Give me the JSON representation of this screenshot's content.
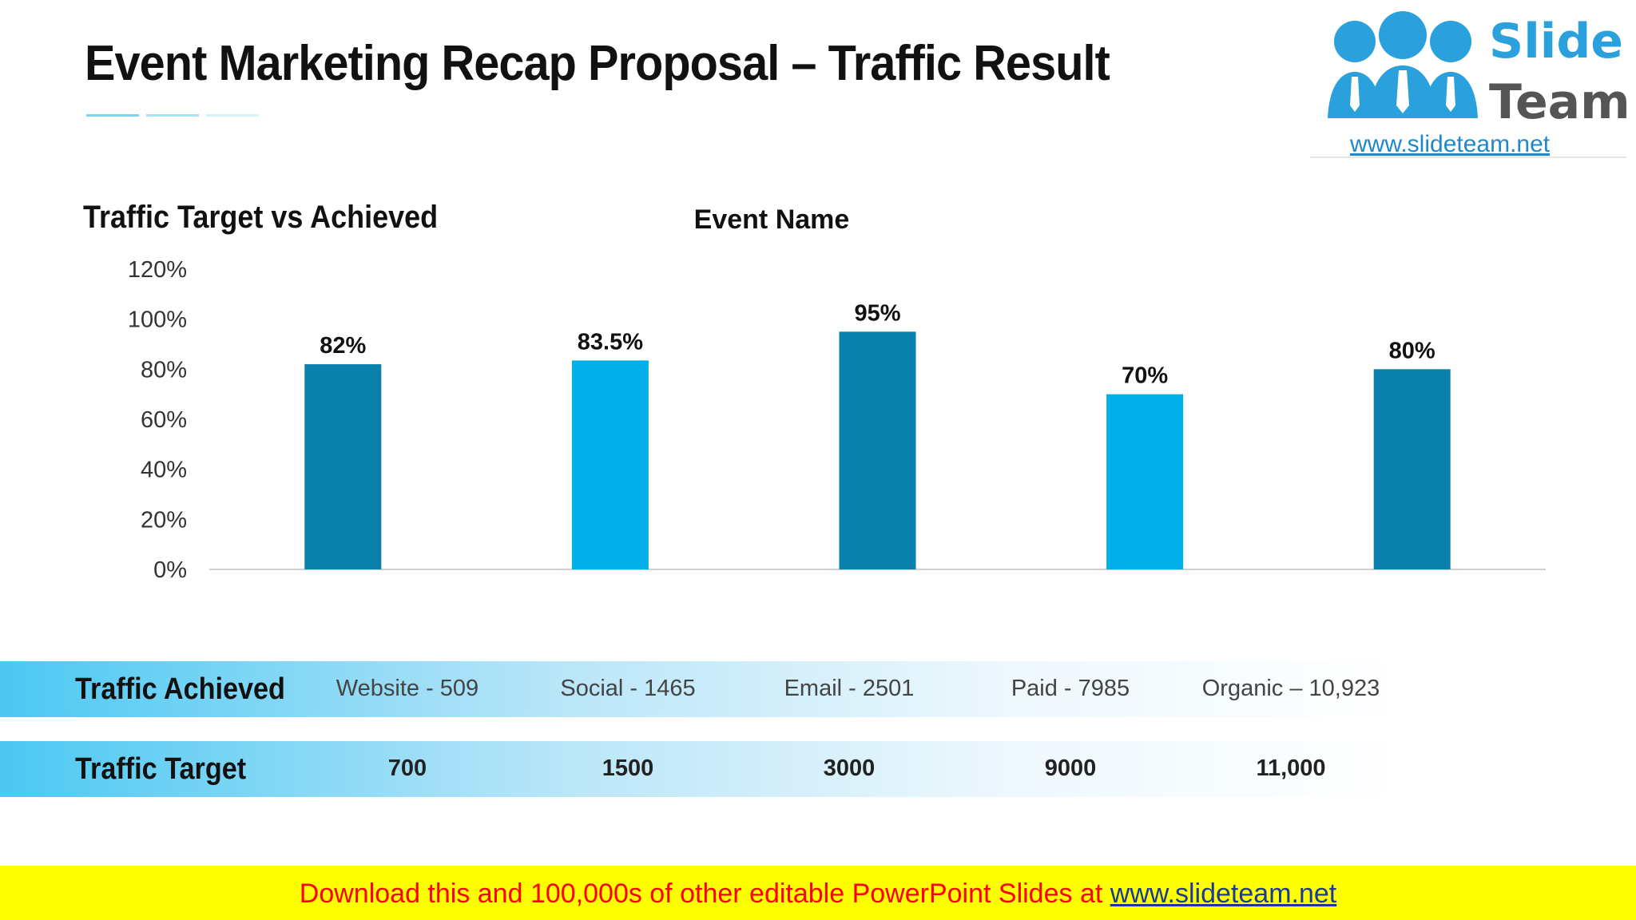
{
  "slide": {
    "title": "Event Marketing Recap Proposal – Traffic Result",
    "accent_colors": [
      "#7fd3ef",
      "#a9e2f5",
      "#d6f1fa"
    ]
  },
  "logo": {
    "word1": "Slide",
    "word2": "Team",
    "url": "www.slideteam.net",
    "colors": {
      "slide": "#2aa0dc",
      "team": "#555555",
      "people": "#2aa0dc"
    }
  },
  "chart_heading": "Traffic Target vs Achieved",
  "chart_data": {
    "type": "bar",
    "title": "Event Name",
    "categories": [
      "Website",
      "Social",
      "Email",
      "Paid",
      "Organic"
    ],
    "values": [
      82,
      83.5,
      95,
      70,
      80
    ],
    "data_labels": [
      "82%",
      "83.5%",
      "95%",
      "70%",
      "80%"
    ],
    "ylim": [
      0,
      120
    ],
    "yticks": [
      0,
      20,
      40,
      60,
      80,
      100,
      120
    ],
    "ytick_labels": [
      "0%",
      "20%",
      "40%",
      "60%",
      "80%",
      "100%",
      "120%"
    ],
    "xlabel": "",
    "ylabel": "",
    "grid": false,
    "legend": "none",
    "bar_colors": [
      "#0a80ad",
      "#00aee8",
      "#0a80ad",
      "#00aee8",
      "#0a80ad"
    ]
  },
  "table": {
    "achieved": {
      "label": "Traffic Achieved",
      "values": [
        "Website - 509",
        "Social - 1465",
        "Email - 2501",
        "Paid - 7985",
        "Organic – 10,923"
      ]
    },
    "target": {
      "label": "Traffic Target",
      "values": [
        "700",
        "1500",
        "3000",
        "9000",
        "11,000"
      ]
    }
  },
  "footer": {
    "text": "Download this and 100,000s of other editable PowerPoint Slides at ",
    "link": "www.slideteam.net"
  }
}
